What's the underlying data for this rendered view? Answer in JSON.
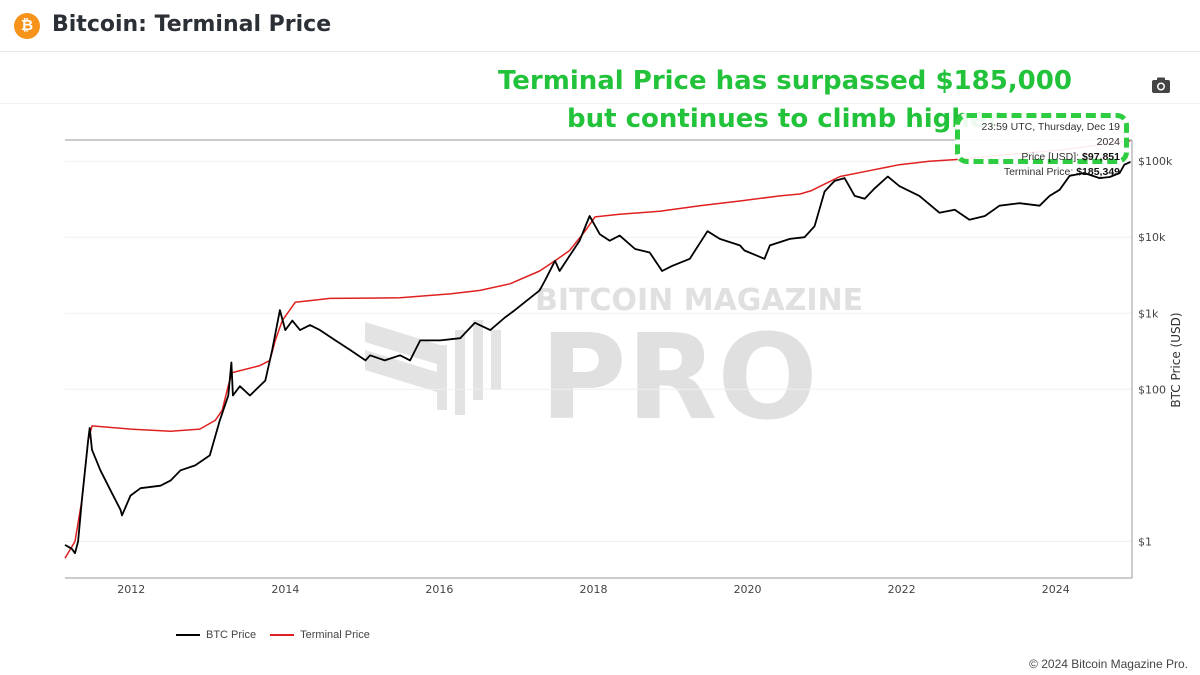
{
  "header": {
    "title": "Bitcoin: Terminal Price",
    "logo_icon": "bitcoin-icon"
  },
  "toolbar": {
    "camera_icon": "camera-icon"
  },
  "annotation": {
    "line1": "Terminal Price has surpassed $185,000",
    "line2": "but continues to climb higher",
    "color": "#22c33a"
  },
  "tooltip": {
    "timestamp": "23:59 UTC, Thursday, Dec 19 2024",
    "price_label": "Price [USD]:",
    "price_value": "$97,851",
    "terminal_label": "Terminal Price:",
    "terminal_value": "$185,349"
  },
  "watermark": "BITCOIN MAGAZINE PRO",
  "footer": "© 2024 Bitcoin Magazine Pro.",
  "chart_data": {
    "type": "line",
    "title": "",
    "xlabel": "",
    "ylabel": "BTC Price (USD)",
    "y_scale": "log",
    "xlim": [
      2011.14,
      2024.99
    ],
    "ylim": [
      0.33,
      190000
    ],
    "grid": true,
    "legend": "bottom-left",
    "x_ticks": [
      2012,
      2014,
      2016,
      2018,
      2020,
      2022,
      2024
    ],
    "x_tick_labels": [
      "2012",
      "2014",
      "2016",
      "2018",
      "2020",
      "2022",
      "2024"
    ],
    "y_ticks": [
      1,
      100,
      1000,
      10000,
      100000
    ],
    "y_tick_labels": [
      "$1",
      "$100",
      "$1k",
      "$10k",
      "$100k"
    ],
    "series": [
      {
        "name": "BTC Price",
        "color": "#000000",
        "points": [
          [
            2011.14,
            0.9
          ],
          [
            2011.23,
            0.8
          ],
          [
            2011.27,
            0.7
          ],
          [
            2011.31,
            1.0
          ],
          [
            2011.36,
            3.5
          ],
          [
            2011.44,
            21
          ],
          [
            2011.46,
            31
          ],
          [
            2011.49,
            16
          ],
          [
            2011.6,
            8.6
          ],
          [
            2011.73,
            4.7
          ],
          [
            2011.86,
            2.6
          ],
          [
            2011.88,
            2.2
          ],
          [
            2011.99,
            4
          ],
          [
            2012.12,
            5
          ],
          [
            2012.38,
            5.4
          ],
          [
            2012.51,
            6.3
          ],
          [
            2012.64,
            8.6
          ],
          [
            2012.83,
            10
          ],
          [
            2013.02,
            13.5
          ],
          [
            2013.15,
            39
          ],
          [
            2013.26,
            83
          ],
          [
            2013.3,
            225
          ],
          [
            2013.32,
            83
          ],
          [
            2013.41,
            110
          ],
          [
            2013.54,
            83
          ],
          [
            2013.74,
            130
          ],
          [
            2013.83,
            330
          ],
          [
            2013.93,
            1100
          ],
          [
            2014.0,
            600
          ],
          [
            2014.09,
            800
          ],
          [
            2014.19,
            600
          ],
          [
            2014.32,
            700
          ],
          [
            2014.45,
            600
          ],
          [
            2014.65,
            440
          ],
          [
            2014.84,
            330
          ],
          [
            2015.04,
            240
          ],
          [
            2015.1,
            280
          ],
          [
            2015.29,
            240
          ],
          [
            2015.49,
            280
          ],
          [
            2015.62,
            240
          ],
          [
            2015.75,
            440
          ],
          [
            2016.01,
            440
          ],
          [
            2016.27,
            470
          ],
          [
            2016.46,
            750
          ],
          [
            2016.66,
            600
          ],
          [
            2016.85,
            880
          ],
          [
            2016.98,
            1100
          ],
          [
            2017.18,
            1600
          ],
          [
            2017.3,
            2000
          ],
          [
            2017.37,
            2700
          ],
          [
            2017.5,
            4900
          ],
          [
            2017.56,
            3600
          ],
          [
            2017.69,
            5700
          ],
          [
            2017.82,
            9000
          ],
          [
            2017.95,
            19000
          ],
          [
            2018.08,
            11000
          ],
          [
            2018.21,
            9000
          ],
          [
            2018.34,
            10500
          ],
          [
            2018.54,
            7000
          ],
          [
            2018.73,
            6300
          ],
          [
            2018.89,
            3600
          ],
          [
            2019.02,
            4200
          ],
          [
            2019.25,
            5200
          ],
          [
            2019.48,
            12000
          ],
          [
            2019.64,
            9500
          ],
          [
            2019.9,
            7800
          ],
          [
            2019.96,
            6700
          ],
          [
            2020.22,
            5200
          ],
          [
            2020.29,
            7800
          ],
          [
            2020.55,
            9500
          ],
          [
            2020.74,
            10000
          ],
          [
            2020.87,
            14000
          ],
          [
            2021.0,
            40000
          ],
          [
            2021.13,
            55000
          ],
          [
            2021.26,
            60000
          ],
          [
            2021.39,
            35000
          ],
          [
            2021.52,
            32000
          ],
          [
            2021.65,
            44000
          ],
          [
            2021.82,
            63000
          ],
          [
            2021.97,
            47000
          ],
          [
            2022.23,
            35000
          ],
          [
            2022.49,
            21000
          ],
          [
            2022.69,
            23000
          ],
          [
            2022.88,
            17000
          ],
          [
            2023.08,
            19000
          ],
          [
            2023.27,
            26000
          ],
          [
            2023.53,
            28000
          ],
          [
            2023.79,
            26000
          ],
          [
            2023.92,
            35000
          ],
          [
            2024.05,
            42000
          ],
          [
            2024.18,
            64000
          ],
          [
            2024.37,
            70000
          ],
          [
            2024.57,
            60000
          ],
          [
            2024.7,
            62000
          ],
          [
            2024.83,
            70000
          ],
          [
            2024.89,
            90000
          ],
          [
            2024.97,
            97851
          ]
        ]
      },
      {
        "name": "Terminal Price",
        "color": "#e02020",
        "points": [
          [
            2011.14,
            0.6
          ],
          [
            2011.27,
            1
          ],
          [
            2011.36,
            3.5
          ],
          [
            2011.44,
            21
          ],
          [
            2011.49,
            33
          ],
          [
            2011.99,
            30
          ],
          [
            2012.51,
            28
          ],
          [
            2012.89,
            30
          ],
          [
            2013.09,
            39
          ],
          [
            2013.18,
            53
          ],
          [
            2013.26,
            112
          ],
          [
            2013.31,
            166
          ],
          [
            2013.67,
            205
          ],
          [
            2013.8,
            240
          ],
          [
            2013.87,
            440
          ],
          [
            2013.96,
            800
          ],
          [
            2014.13,
            1400
          ],
          [
            2014.58,
            1570
          ],
          [
            2015.49,
            1600
          ],
          [
            2016.14,
            1800
          ],
          [
            2016.53,
            2000
          ],
          [
            2016.92,
            2450
          ],
          [
            2017.3,
            3600
          ],
          [
            2017.5,
            4900
          ],
          [
            2017.69,
            6700
          ],
          [
            2017.89,
            12000
          ],
          [
            2018.02,
            18500
          ],
          [
            2018.34,
            20000
          ],
          [
            2018.86,
            22000
          ],
          [
            2019.38,
            26000
          ],
          [
            2019.9,
            30000
          ],
          [
            2020.42,
            35000
          ],
          [
            2020.68,
            37000
          ],
          [
            2020.83,
            41000
          ],
          [
            2021.0,
            50000
          ],
          [
            2021.2,
            63000
          ],
          [
            2021.58,
            75000
          ],
          [
            2021.97,
            90000
          ],
          [
            2022.36,
            100000
          ],
          [
            2022.69,
            105000
          ],
          [
            2023.27,
            120000
          ],
          [
            2024.05,
            140000
          ],
          [
            2024.97,
            185349
          ]
        ]
      }
    ]
  }
}
